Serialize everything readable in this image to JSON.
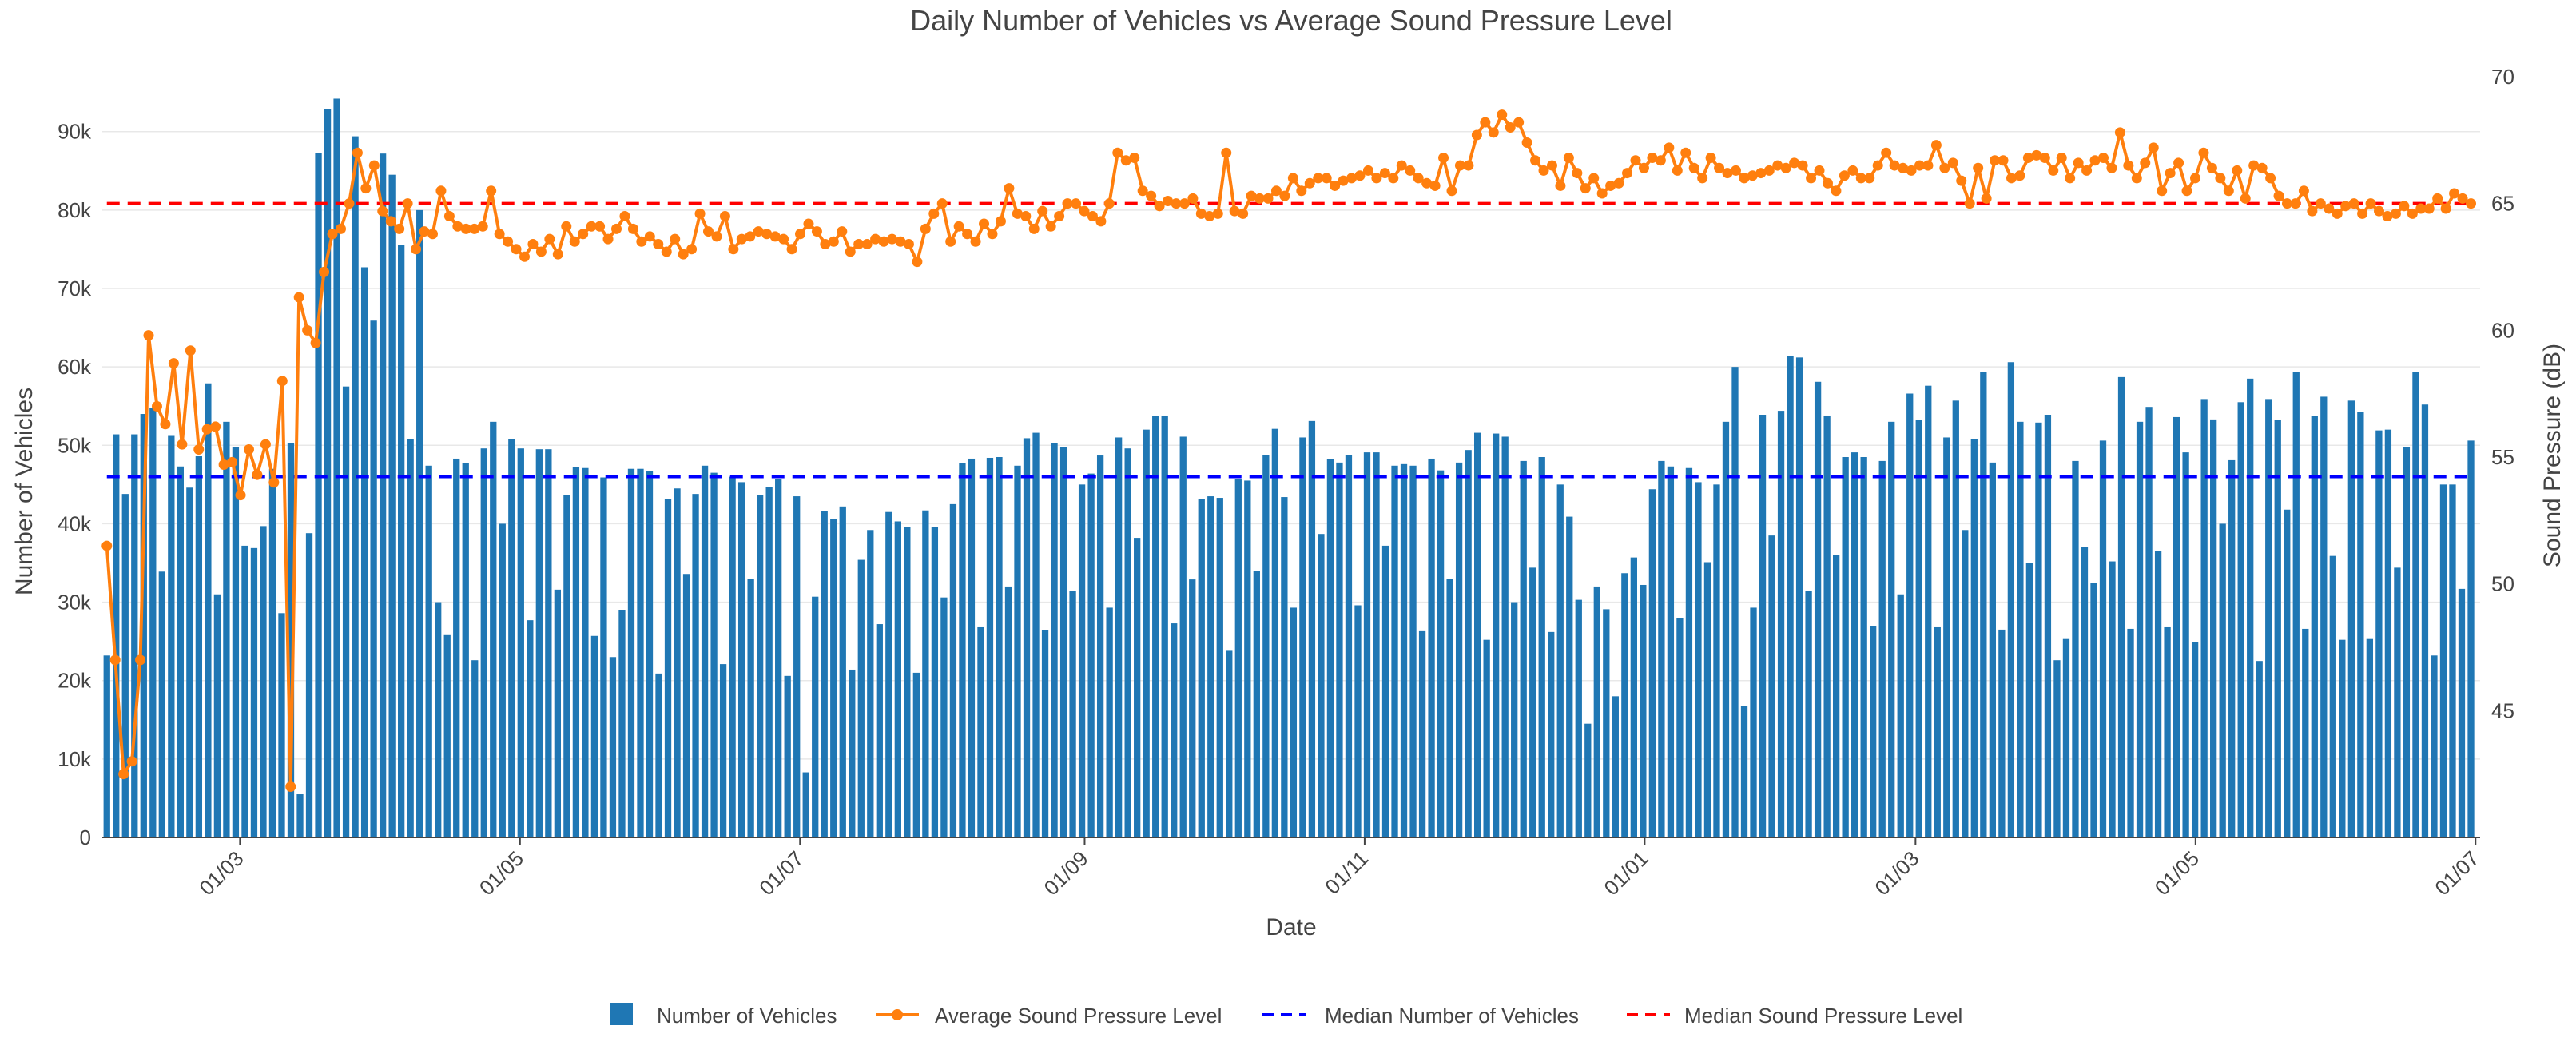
{
  "chart_data": {
    "type": "bar+line",
    "title": "Daily Number of Vehicles vs Average Sound Pressure Level",
    "xlabel": "Date",
    "ylabel": "Number of Vehicles",
    "y2label": "Sound Pressure (dB)",
    "ylim": [
      0,
      97000
    ],
    "y2lim": [
      40,
      70
    ],
    "y_ticks": [
      0,
      10000,
      20000,
      30000,
      40000,
      50000,
      60000,
      70000,
      80000,
      90000
    ],
    "y_tick_labels": [
      "0",
      "10k",
      "20k",
      "30k",
      "40k",
      "50k",
      "60k",
      "70k",
      "80k",
      "90k"
    ],
    "y2_ticks": [
      45,
      50,
      55,
      60,
      65,
      70
    ],
    "y2_tick_labels": [
      "45",
      "50",
      "55",
      "60",
      "65",
      "70"
    ],
    "x_start_day": 0,
    "x_end_day": 515,
    "x_ticks": [
      {
        "day": 29,
        "label": "01/03"
      },
      {
        "day": 90,
        "label": "01/05"
      },
      {
        "day": 151,
        "label": "01/07"
      },
      {
        "day": 213,
        "label": "01/09"
      },
      {
        "day": 274,
        "label": "01/11"
      },
      {
        "day": 335,
        "label": "01/01"
      },
      {
        "day": 394,
        "label": "01/03"
      },
      {
        "day": 455,
        "label": "01/05"
      },
      {
        "day": 516,
        "label": "01/07"
      }
    ],
    "vehicles_series_name": "Number of Vehicles",
    "sound_series_name": "Average Sound Pressure Level",
    "median_vehicles_name": "Median Number of Vehicles",
    "median_sound_name": "Median Sound Pressure Level",
    "median_vehicles": 46000,
    "median_sound_db": 65,
    "vehicles": [
      23200,
      51400,
      43800,
      51400,
      54000,
      54800,
      33900,
      51200,
      47300,
      44600,
      48600,
      57900,
      31000,
      53000,
      49800,
      37200,
      36900,
      39700,
      47000,
      28600,
      50300,
      5500,
      38800,
      87300,
      92900,
      94200,
      57500,
      89400,
      72700,
      65900,
      87200,
      84500,
      75500,
      50800,
      80000,
      47400,
      30000,
      25800,
      48300,
      47700,
      22600,
      49600,
      53000,
      40000,
      50800,
      49600,
      27700,
      49500,
      49500,
      31600,
      43700,
      47200,
      47100,
      25700,
      45900,
      23000,
      29000,
      47000,
      47000,
      46700,
      20900,
      43200,
      44500,
      33600,
      43800,
      47400,
      46500,
      22100,
      46000,
      45300,
      33000,
      43700,
      44700,
      45700,
      20600,
      43500,
      8300,
      30700,
      41600,
      40600,
      42200,
      21400,
      35400,
      39200,
      27200,
      41500,
      40300,
      39600,
      21000,
      41700,
      39600,
      30600,
      42500,
      47700,
      48300,
      26800,
      48400,
      48500,
      32000,
      47400,
      50900,
      51600,
      26400,
      50300,
      49800,
      31400,
      45000,
      46400,
      48700,
      29300,
      51000,
      49600,
      38200,
      52000,
      53700,
      53800,
      27300,
      51100,
      32900,
      43100,
      43500,
      43300,
      23800,
      45700,
      45500,
      34000,
      48800,
      52100,
      43400,
      29300,
      51000,
      53100,
      38700,
      48200,
      47800,
      48800,
      29600,
      49100,
      49100,
      37200,
      47400,
      47600,
      47400,
      26300,
      48300,
      46800,
      33000,
      47800,
      49400,
      51600,
      25200,
      51500,
      51100,
      30000,
      48000,
      34400,
      48500,
      26200,
      45000,
      40900,
      30300,
      14500,
      32000,
      29100,
      18000,
      33700,
      35700,
      32200,
      44400,
      48000,
      47300,
      28000,
      47100,
      45300,
      35100,
      45000,
      53000,
      60000,
      16800,
      29300,
      53900,
      38500,
      54400,
      61400,
      61200,
      31400,
      58100,
      53800,
      36000,
      48500,
      49100,
      48500,
      27000,
      48000,
      53000,
      31000,
      56600,
      53200,
      57600,
      26800,
      51000,
      55700,
      39200,
      50800,
      59300,
      47800,
      26500,
      60600,
      53000,
      35000,
      52900,
      53900,
      22600,
      25300,
      48000,
      37000,
      32500,
      50600,
      35200,
      58700,
      26600,
      53000,
      54900,
      36500,
      26800,
      53600,
      49100,
      24900,
      55900,
      53300,
      40000,
      48100,
      55500,
      58500,
      22500,
      55900,
      53200,
      41800,
      59300,
      26600,
      53700,
      56200,
      35900,
      25200,
      55700,
      54300,
      25300,
      51900,
      52000,
      34400,
      49800,
      59400,
      55200,
      23200,
      45000,
      45000,
      31700,
      50600
    ],
    "sound_db": [
      51.5,
      47.0,
      42.5,
      43.0,
      47.0,
      59.8,
      57.0,
      56.3,
      58.7,
      55.5,
      59.2,
      55.3,
      56.1,
      56.2,
      54.7,
      54.8,
      53.5,
      55.3,
      54.3,
      55.5,
      54.0,
      58.0,
      42.0,
      61.3,
      60.0,
      59.5,
      62.3,
      63.8,
      64.0,
      65.0,
      67.0,
      65.6,
      66.5,
      64.7,
      64.3,
      64.0,
      65.0,
      63.2,
      63.9,
      63.8,
      65.5,
      64.5,
      64.1,
      64.0,
      64.0,
      64.1,
      65.5,
      63.8,
      63.5,
      63.2,
      62.9,
      63.4,
      63.1,
      63.6,
      63.0,
      64.1,
      63.5,
      63.8,
      64.1,
      64.1,
      63.6,
      64.0,
      64.5,
      64.0,
      63.5,
      63.7,
      63.4,
      63.1,
      63.6,
      63.0,
      63.2,
      64.6,
      63.9,
      63.7,
      64.5,
      63.2,
      63.6,
      63.7,
      63.9,
      63.8,
      63.7,
      63.6,
      63.2,
      63.8,
      64.2,
      63.9,
      63.4,
      63.5,
      63.9,
      63.1,
      63.4,
      63.4,
      63.6,
      63.5,
      63.6,
      63.5,
      63.4,
      62.7,
      64.0,
      64.6,
      65.0,
      63.5,
      64.1,
      63.8,
      63.5,
      64.2,
      63.8,
      64.3,
      65.6,
      64.6,
      64.5,
      64.0,
      64.7,
      64.1,
      64.5,
      65.0,
      65.0,
      64.7,
      64.5,
      64.3,
      65.0,
      67.0,
      66.7,
      66.8,
      65.5,
      65.3,
      64.9,
      65.1,
      65.0,
      65.0,
      65.2,
      64.6,
      64.5,
      64.6,
      67.0,
      64.7,
      64.6,
      65.3,
      65.2,
      65.2,
      65.5,
      65.3,
      66.0,
      65.5,
      65.8,
      66.0,
      66.0,
      65.7,
      65.9,
      66.0,
      66.1,
      66.3,
      66.0,
      66.2,
      66.0,
      66.5,
      66.3,
      66.0,
      65.8,
      65.7,
      66.8,
      65.5,
      66.5,
      66.5,
      67.7,
      68.2,
      67.8,
      68.5,
      68.0,
      68.2,
      67.4,
      66.7,
      66.3,
      66.5,
      65.7,
      66.8,
      66.2,
      65.6,
      66.0,
      65.4,
      65.7,
      65.8,
      66.2,
      66.7,
      66.4,
      66.8,
      66.7,
      67.2,
      66.3,
      67.0,
      66.4,
      66.0,
      66.8,
      66.4,
      66.2,
      66.3,
      66.0,
      66.1,
      66.2,
      66.3,
      66.5,
      66.4,
      66.6,
      66.5,
      66.0,
      66.3,
      65.8,
      65.5,
      66.1,
      66.3,
      66.0,
      66.0,
      66.5,
      67.0,
      66.5,
      66.4,
      66.3,
      66.5,
      66.5,
      67.3,
      66.4,
      66.6,
      65.9,
      65.0,
      66.4,
      65.2,
      66.7,
      66.7,
      66.0,
      66.1,
      66.8,
      66.9,
      66.8,
      66.3,
      66.8,
      66.0,
      66.6,
      66.3,
      66.7,
      66.8,
      66.4,
      67.8,
      66.5,
      66.0,
      66.6,
      67.2,
      65.5,
      66.2,
      66.6,
      65.5,
      66.0,
      67.0,
      66.4,
      66.0,
      65.5,
      66.3,
      65.2,
      66.5,
      66.4,
      66.0,
      65.3,
      65.0,
      65.0,
      65.5,
      64.7,
      65.0,
      64.8,
      64.6,
      64.9,
      65.0,
      64.6,
      65.0,
      64.7,
      64.5,
      64.6,
      64.9,
      64.6,
      64.8,
      64.8,
      65.2,
      64.8,
      65.4,
      65.2,
      65.0
    ],
    "colors": {
      "bars": "#1f77b4",
      "sound_line": "#ff7f0e",
      "median_vehicles": "#0000ff",
      "median_sound": "#ff0000",
      "grid": "#e8e8e8",
      "axis": "#444444"
    }
  }
}
